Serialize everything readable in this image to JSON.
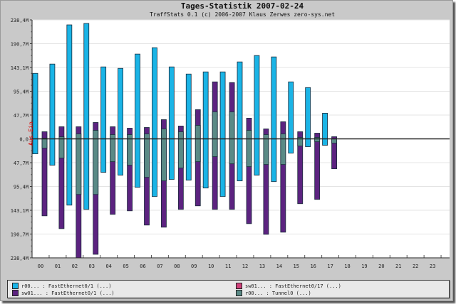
{
  "header": {
    "title": "Tages-Statistik 2007-02-24",
    "subtitle": "TraffStats 0.1 (c) 2006-2007 Klaus Zerwes zero-sys.net"
  },
  "legend": [
    {
      "label": "r00... : FastEthernet0/1 (...)",
      "color": "#1ab4e6"
    },
    {
      "label": "sw01... : FastEthernet0/17 (...)",
      "color": "#d0407a"
    },
    {
      "label": "sw01... : FastEthernet0/1 (...)",
      "color": "#5c2380"
    },
    {
      "label": "r00... : Tunnel0 (...)",
      "color": "#5a8a86"
    }
  ],
  "chart_data": {
    "type": "bar",
    "title": "Tages-Statistik 2007-02-24",
    "subtitle": "TraffStats 0.1 (c) 2006-2007 Klaus Zerwes zero-sys.net",
    "ylabel": "Aus Ein",
    "ylim": [
      -238.4,
      238.4
    ],
    "yticks": [
      238.4,
      190.7,
      143.1,
      95.4,
      47.7,
      0,
      -47.7,
      -95.4,
      -143.1,
      -190.7,
      -238.4
    ],
    "ytick_labels": [
      "238,4M",
      "190,7M",
      "143,1M",
      "95,4M",
      "47,7M",
      "0,0",
      "47,7M",
      "95,4M",
      "143,1M",
      "190,7M",
      "238,4M"
    ],
    "categories": [
      "00",
      "01",
      "02",
      "03",
      "04",
      "05",
      "06",
      "07",
      "08",
      "09",
      "10",
      "11",
      "12",
      "13",
      "14",
      "15",
      "16",
      "17",
      "18",
      "19",
      "20",
      "21",
      "22",
      "23"
    ],
    "unit": "M (positive = Ein, negative = Aus)",
    "grid": true,
    "legend_position": "bottom",
    "series": [
      {
        "name": "r00 FastEthernet0/1",
        "color": "#1ab4e6",
        "up": [
          131.3,
          149.9,
          228.4,
          231.3,
          144.2,
          141.3,
          169.9,
          182.7,
          144.2,
          129.9,
          134.2,
          134.2,
          154.2,
          167.0,
          164.2,
          114.2,
          102.8,
          51.4
        ],
        "down": [
          -30.0,
          -52.8,
          -132.8,
          -141.3,
          -67.1,
          -72.8,
          -97.1,
          -115.6,
          -81.4,
          -82.8,
          -98.5,
          -115.6,
          -84.2,
          -72.8,
          -85.7,
          -28.6,
          -15.7,
          -12.8
        ]
      },
      {
        "name": "sw01 FastEthernet0/1",
        "color": "#5c2380",
        "up": [
          14.3,
          24.3,
          24.3,
          32.8,
          24.3,
          21.4,
          22.8,
          38.5,
          25.7,
          58.5,
          114.2,
          112.8,
          41.4,
          20.0,
          34.3,
          14.3,
          11.4,
          4.3
        ],
        "down": [
          -154.2,
          -179.9,
          -238.4,
          -231.3,
          -151.3,
          -144.2,
          -172.7,
          -177.0,
          -141.3,
          -134.2,
          -141.3,
          -141.3,
          -169.9,
          -191.3,
          -187.0,
          -129.9,
          -121.3,
          -60.0
        ]
      },
      {
        "name": "r00 Tunnel0",
        "color": "#5a8a86",
        "up": [
          1.4,
          4.3,
          10.0,
          17.1,
          8.6,
          8.6,
          10.0,
          20.0,
          14.3,
          27.1,
          54.2,
          54.2,
          17.1,
          8.6,
          10.0,
          2.9,
          2.9,
          0
        ],
        "down": [
          -18.6,
          -38.5,
          -111.4,
          -111.4,
          -45.7,
          -52.8,
          -77.1,
          -84.2,
          -58.5,
          -45.7,
          -35.7,
          -50.0,
          -55.7,
          -51.4,
          -51.4,
          -14.3,
          -5.7,
          -8.6
        ]
      },
      {
        "name": "sw01 FastEthernet0/17",
        "color": "#d0407a",
        "up": [],
        "down": []
      }
    ]
  }
}
